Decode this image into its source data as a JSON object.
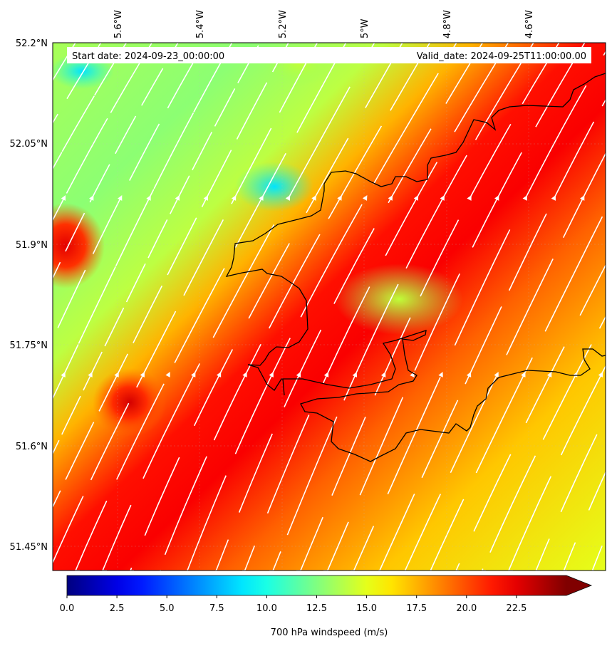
{
  "header": {
    "start_date": "Start date: 2024-09-23_00:00:00",
    "valid_date": "Valid_date: 2024-09-25T11:00:00.00"
  },
  "axes": {
    "lon_ticks": [
      "5.6°W",
      "5.4°W",
      "5.2°W",
      "5°W",
      "4.8°W",
      "4.6°W"
    ],
    "lat_ticks": [
      "52.2°N",
      "52.05°N",
      "51.9°N",
      "51.75°N",
      "51.6°N",
      "51.45°N"
    ]
  },
  "colorbar": {
    "label": "700 hPa windspeed (m/s)",
    "ticks": [
      "0.0",
      "2.5",
      "5.0",
      "7.5",
      "10.0",
      "12.5",
      "15.0",
      "17.5",
      "20.0",
      "22.5"
    ],
    "min": 0,
    "max": 25,
    "extend": "max",
    "colormap": "jet"
  },
  "map": {
    "variable": "700 hPa windspeed",
    "units": "m/s",
    "lon_range": [
      -5.75,
      -4.4
    ],
    "lat_range": [
      51.42,
      52.2
    ],
    "streamline_color": "#ffffff",
    "coastline_color": "#000000",
    "field_stops": [
      {
        "pos": 0.0,
        "speed": 13.5
      },
      {
        "pos": 0.18,
        "speed": 12.8
      },
      {
        "pos": 0.3,
        "speed": 14.0
      },
      {
        "pos": 0.38,
        "speed": 17.5
      },
      {
        "pos": 0.48,
        "speed": 21.5
      },
      {
        "pos": 0.56,
        "speed": 22.0
      },
      {
        "pos": 0.66,
        "speed": 19.5
      },
      {
        "pos": 0.8,
        "speed": 17.0
      },
      {
        "pos": 1.0,
        "speed": 15.0
      }
    ]
  }
}
